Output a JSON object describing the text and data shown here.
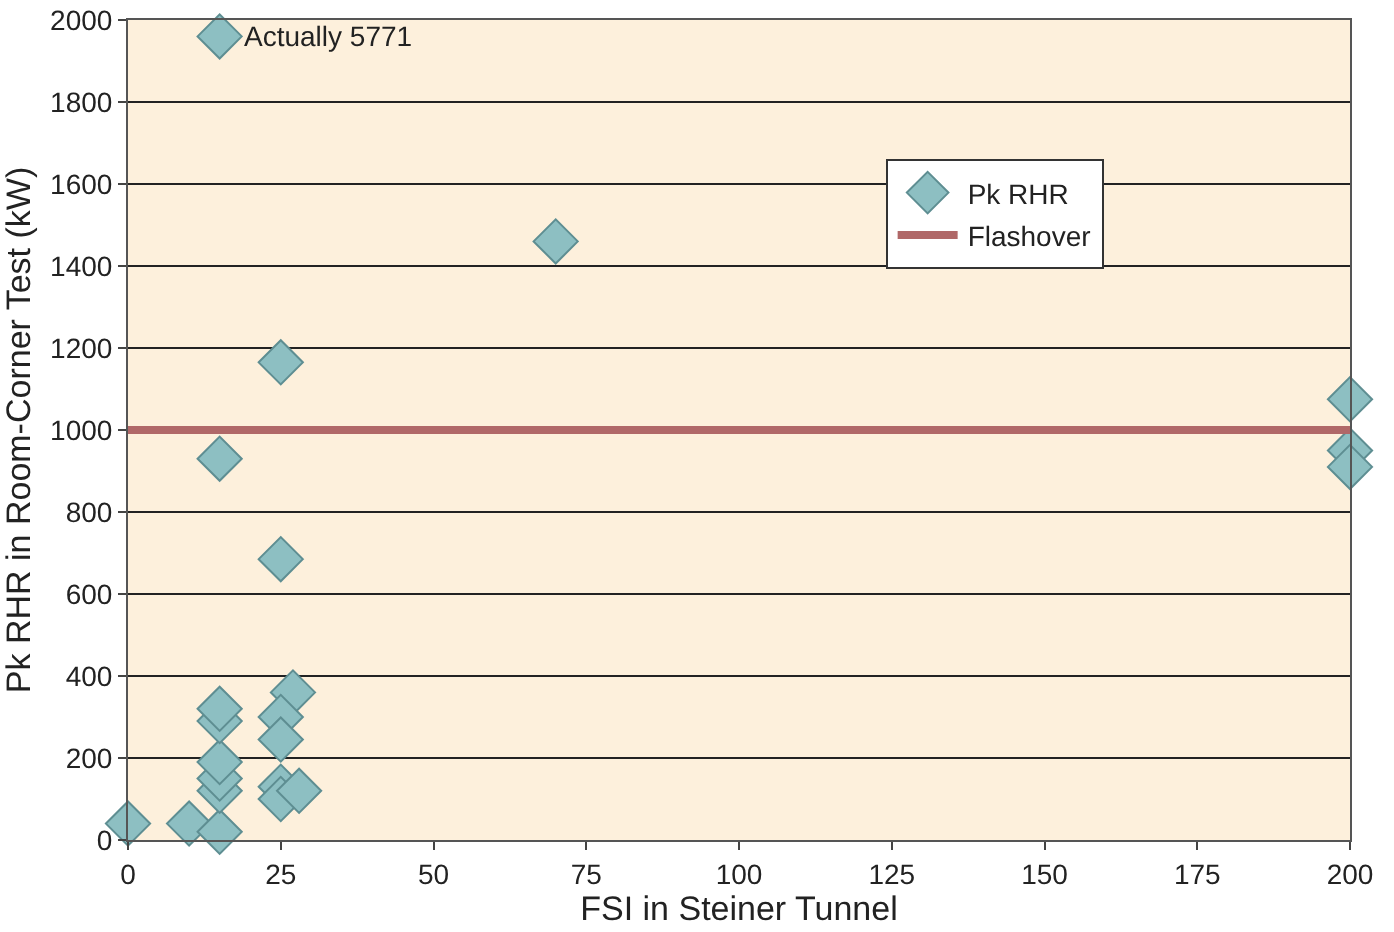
{
  "chart_data": {
    "type": "scatter",
    "xlabel": "FSI in Steiner Tunnel",
    "ylabel": "Pk RHR in Room-Corner Test (kW)",
    "series": [
      {
        "name": "Pk RHR",
        "color": "#8dbfc2",
        "x": [
          0,
          10,
          15,
          15,
          15,
          15,
          15,
          15,
          15,
          15,
          25,
          25,
          27,
          25,
          25,
          25,
          25,
          28,
          70,
          200,
          200,
          200
        ],
        "values": [
          40,
          40,
          20,
          120,
          150,
          190,
          290,
          320,
          930,
          1960,
          1165,
          685,
          360,
          300,
          245,
          130,
          100,
          120,
          1460,
          1075,
          950,
          910
        ]
      }
    ],
    "ref_lines": [
      {
        "axis": "y",
        "value": 1000,
        "label": "Flashover",
        "color": "#b06868"
      }
    ],
    "annotations": [
      {
        "text": "Actually 5771",
        "x": 15,
        "y": 1960
      }
    ],
    "xlim": [
      0,
      200
    ],
    "xticks": [
      0,
      25,
      50,
      75,
      100,
      125,
      150,
      175,
      200
    ],
    "ylim": [
      0,
      2000
    ],
    "yticks": [
      0,
      200,
      400,
      600,
      800,
      1000,
      1200,
      1400,
      1600,
      1800,
      2000
    ],
    "grid": "y",
    "legend": "top right",
    "marker": "diamond"
  }
}
